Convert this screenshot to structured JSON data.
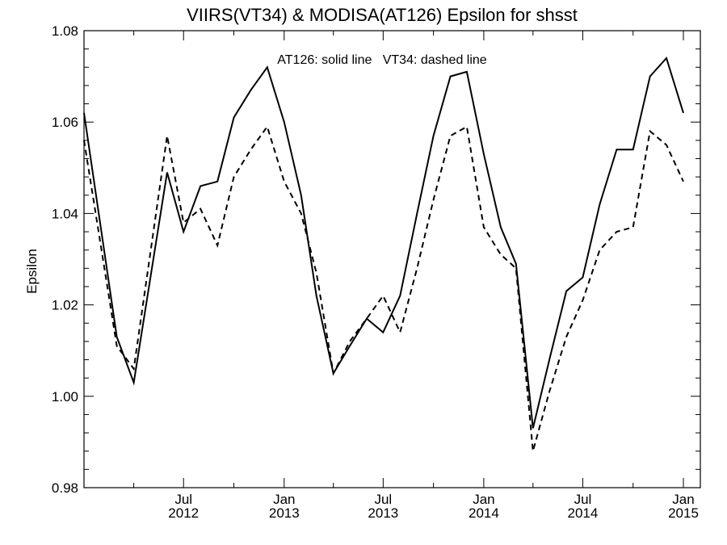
{
  "chart_data": {
    "type": "line",
    "title": "VIIRS(VT34) & MODISA(AT126)  Epsilon for shsst",
    "xlabel": "",
    "ylabel": "Epsilon",
    "annotation": "AT126: solid line   VT34: dashed line",
    "xlim": [
      "2012-01-01",
      "2015-02-01"
    ],
    "ylim": [
      0.98,
      1.08
    ],
    "y_ticks": [
      0.98,
      1.0,
      1.02,
      1.04,
      1.06,
      1.08
    ],
    "y_tick_labels": [
      "0.98",
      "1.00",
      "1.02",
      "1.04",
      "1.06",
      "1.08"
    ],
    "x_ticks": [
      {
        "date": "2012-07-01",
        "month": "Jul",
        "year": "2012"
      },
      {
        "date": "2013-01-01",
        "month": "Jan",
        "year": "2013"
      },
      {
        "date": "2013-07-01",
        "month": "Jul",
        "year": "2013"
      },
      {
        "date": "2014-01-01",
        "month": "Jan",
        "year": "2014"
      },
      {
        "date": "2014-07-01",
        "month": "Jul",
        "year": "2014"
      },
      {
        "date": "2015-01-01",
        "month": "Jan",
        "year": "2015"
      }
    ],
    "x_minor_ticks": [
      "2012-04-01",
      "2012-10-01",
      "2013-04-01",
      "2013-10-01",
      "2014-04-01",
      "2014-10-01"
    ],
    "grid": false,
    "series": [
      {
        "name": "AT126",
        "style": "solid",
        "color": "#000000",
        "points": [
          [
            "2012-01-01",
            1.062
          ],
          [
            "2012-03-01",
            1.013
          ],
          [
            "2012-04-01",
            1.003
          ],
          [
            "2012-06-01",
            1.049
          ],
          [
            "2012-07-01",
            1.036
          ],
          [
            "2012-08-01",
            1.046
          ],
          [
            "2012-09-01",
            1.047
          ],
          [
            "2012-10-01",
            1.061
          ],
          [
            "2012-11-01",
            1.067
          ],
          [
            "2012-12-01",
            1.072
          ],
          [
            "2013-01-01",
            1.06
          ],
          [
            "2013-02-01",
            1.044
          ],
          [
            "2013-03-01",
            1.022
          ],
          [
            "2013-04-01",
            1.005
          ],
          [
            "2013-05-01",
            1.011
          ],
          [
            "2013-06-01",
            1.017
          ],
          [
            "2013-07-01",
            1.014
          ],
          [
            "2013-08-01",
            1.022
          ],
          [
            "2013-09-01",
            1.04
          ],
          [
            "2013-10-01",
            1.057
          ],
          [
            "2013-11-01",
            1.07
          ],
          [
            "2013-12-01",
            1.071
          ],
          [
            "2014-01-01",
            1.053
          ],
          [
            "2014-02-01",
            1.037
          ],
          [
            "2014-03-01",
            1.029
          ],
          [
            "2014-04-01",
            0.993
          ],
          [
            "2014-05-01",
            1.008
          ],
          [
            "2014-06-01",
            1.023
          ],
          [
            "2014-07-01",
            1.026
          ],
          [
            "2014-08-01",
            1.042
          ],
          [
            "2014-09-01",
            1.054
          ],
          [
            "2014-10-01",
            1.054
          ],
          [
            "2014-11-01",
            1.07
          ],
          [
            "2014-12-01",
            1.074
          ],
          [
            "2015-01-01",
            1.062
          ]
        ]
      },
      {
        "name": "VT34",
        "style": "dashed",
        "color": "#000000",
        "points": [
          [
            "2012-01-01",
            1.056
          ],
          [
            "2012-03-01",
            1.011
          ],
          [
            "2012-04-01",
            1.006
          ],
          [
            "2012-06-01",
            1.057
          ],
          [
            "2012-07-01",
            1.038
          ],
          [
            "2012-08-01",
            1.041
          ],
          [
            "2012-09-01",
            1.033
          ],
          [
            "2012-10-01",
            1.048
          ],
          [
            "2012-11-01",
            1.054
          ],
          [
            "2012-12-01",
            1.059
          ],
          [
            "2013-01-01",
            1.047
          ],
          [
            "2013-02-01",
            1.04
          ],
          [
            "2013-03-01",
            1.027
          ],
          [
            "2013-04-01",
            1.005
          ],
          [
            "2013-05-01",
            1.012
          ],
          [
            "2013-06-01",
            1.017
          ],
          [
            "2013-07-01",
            1.022
          ],
          [
            "2013-08-01",
            1.014
          ],
          [
            "2013-09-01",
            1.028
          ],
          [
            "2013-10-01",
            1.043
          ],
          [
            "2013-11-01",
            1.057
          ],
          [
            "2013-12-01",
            1.059
          ],
          [
            "2014-01-01",
            1.037
          ],
          [
            "2014-02-01",
            1.031
          ],
          [
            "2014-03-01",
            1.028
          ],
          [
            "2014-04-01",
            0.988
          ],
          [
            "2014-05-01",
            1.001
          ],
          [
            "2014-06-01",
            1.013
          ],
          [
            "2014-07-01",
            1.021
          ],
          [
            "2014-08-01",
            1.032
          ],
          [
            "2014-09-01",
            1.036
          ],
          [
            "2014-10-01",
            1.037
          ],
          [
            "2014-11-01",
            1.058
          ],
          [
            "2014-12-01",
            1.055
          ],
          [
            "2015-01-01",
            1.047
          ]
        ]
      }
    ]
  }
}
